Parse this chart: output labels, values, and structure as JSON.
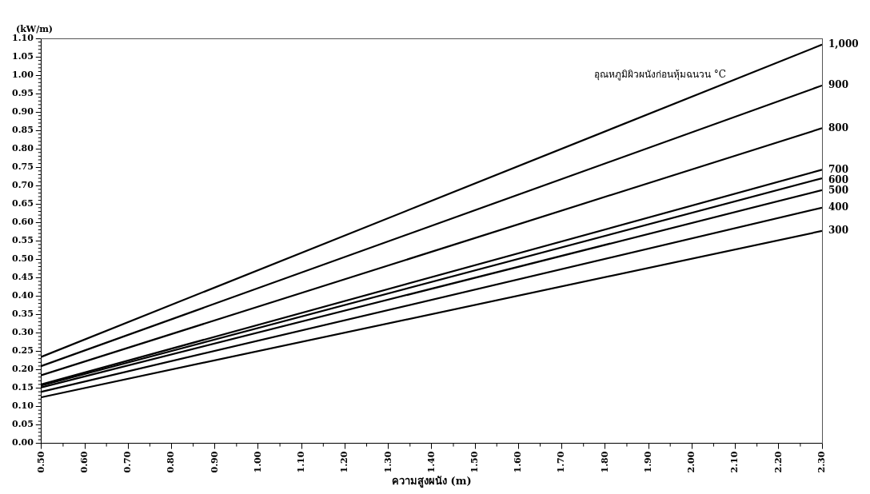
{
  "chart_data": {
    "type": "line",
    "xlabel": "ความสูงผนัง (m)",
    "ylabel": "(kW/m)",
    "legend_title": "อุณหภูมิผิวผนังก่อนหุ้มฉนวน °C",
    "x": [
      0.5,
      2.3
    ],
    "series": [
      {
        "name": "1,000",
        "color": "#000000",
        "values": [
          0.235,
          1.083
        ]
      },
      {
        "name": "900",
        "color": "#000000",
        "values": [
          0.21,
          0.972
        ]
      },
      {
        "name": "800",
        "color": "#000000",
        "values": [
          0.185,
          0.856
        ]
      },
      {
        "name": "700",
        "color": "#000000",
        "values": [
          0.16,
          0.743
        ]
      },
      {
        "name": "600",
        "color": "#000000",
        "values": [
          0.157,
          0.72
        ]
      },
      {
        "name": "500",
        "color": "#000000",
        "values": [
          0.152,
          0.688
        ]
      },
      {
        "name": "400",
        "color": "#000000",
        "values": [
          0.14,
          0.64
        ]
      },
      {
        "name": "300",
        "color": "#000000",
        "values": [
          0.125,
          0.577
        ]
      }
    ],
    "xlim": [
      0.5,
      2.3
    ],
    "xticks": [
      {
        "value": 0.5,
        "label": "0.50"
      },
      {
        "value": 0.6,
        "label": "0.60"
      },
      {
        "value": 0.7,
        "label": "0.70"
      },
      {
        "value": 0.8,
        "label": "0.80"
      },
      {
        "value": 0.9,
        "label": "0.90"
      },
      {
        "value": 1.0,
        "label": "1.00"
      },
      {
        "value": 1.1,
        "label": "1.10"
      },
      {
        "value": 1.2,
        "label": "1.20"
      },
      {
        "value": 1.3,
        "label": "1.30"
      },
      {
        "value": 1.4,
        "label": "1.40"
      },
      {
        "value": 1.5,
        "label": "1.50"
      },
      {
        "value": 1.6,
        "label": "1.60"
      },
      {
        "value": 1.7,
        "label": "1.70"
      },
      {
        "value": 1.8,
        "label": "1.80"
      },
      {
        "value": 1.9,
        "label": "1.90"
      },
      {
        "value": 2.0,
        "label": "2.00"
      },
      {
        "value": 2.1,
        "label": "2.10"
      },
      {
        "value": 2.2,
        "label": "2.20"
      },
      {
        "value": 2.3,
        "label": "2.30"
      }
    ],
    "ylim": [
      0,
      1.1
    ],
    "yticks": [
      {
        "value": 0,
        "label": "0.00"
      },
      {
        "value": 0.05,
        "label": "0.05"
      },
      {
        "value": 0.1,
        "label": "0.10"
      },
      {
        "value": 0.15,
        "label": "0.15"
      },
      {
        "value": 0.2,
        "label": "0.20"
      },
      {
        "value": 0.25,
        "label": "0.25"
      },
      {
        "value": 0.3,
        "label": "0.30"
      },
      {
        "value": 0.35,
        "label": "0.35"
      },
      {
        "value": 0.4,
        "label": "0.40"
      },
      {
        "value": 0.45,
        "label": "0.45"
      },
      {
        "value": 0.5,
        "label": "0.50"
      },
      {
        "value": 0.55,
        "label": "0.55"
      },
      {
        "value": 0.6,
        "label": "0.60"
      },
      {
        "value": 0.65,
        "label": "0.65"
      },
      {
        "value": 0.7,
        "label": "0.70"
      },
      {
        "value": 0.75,
        "label": "0.75"
      },
      {
        "value": 0.8,
        "label": "0.80"
      },
      {
        "value": 0.85,
        "label": "0.85"
      },
      {
        "value": 0.9,
        "label": "0.90"
      },
      {
        "value": 0.95,
        "label": "0.95"
      },
      {
        "value": 1.0,
        "label": "1.00"
      },
      {
        "value": 1.05,
        "label": "1.05"
      },
      {
        "value": 1.1,
        "label": "1.10"
      }
    ],
    "grid": false,
    "legend": false,
    "marker": "none",
    "line_style": "solid"
  }
}
